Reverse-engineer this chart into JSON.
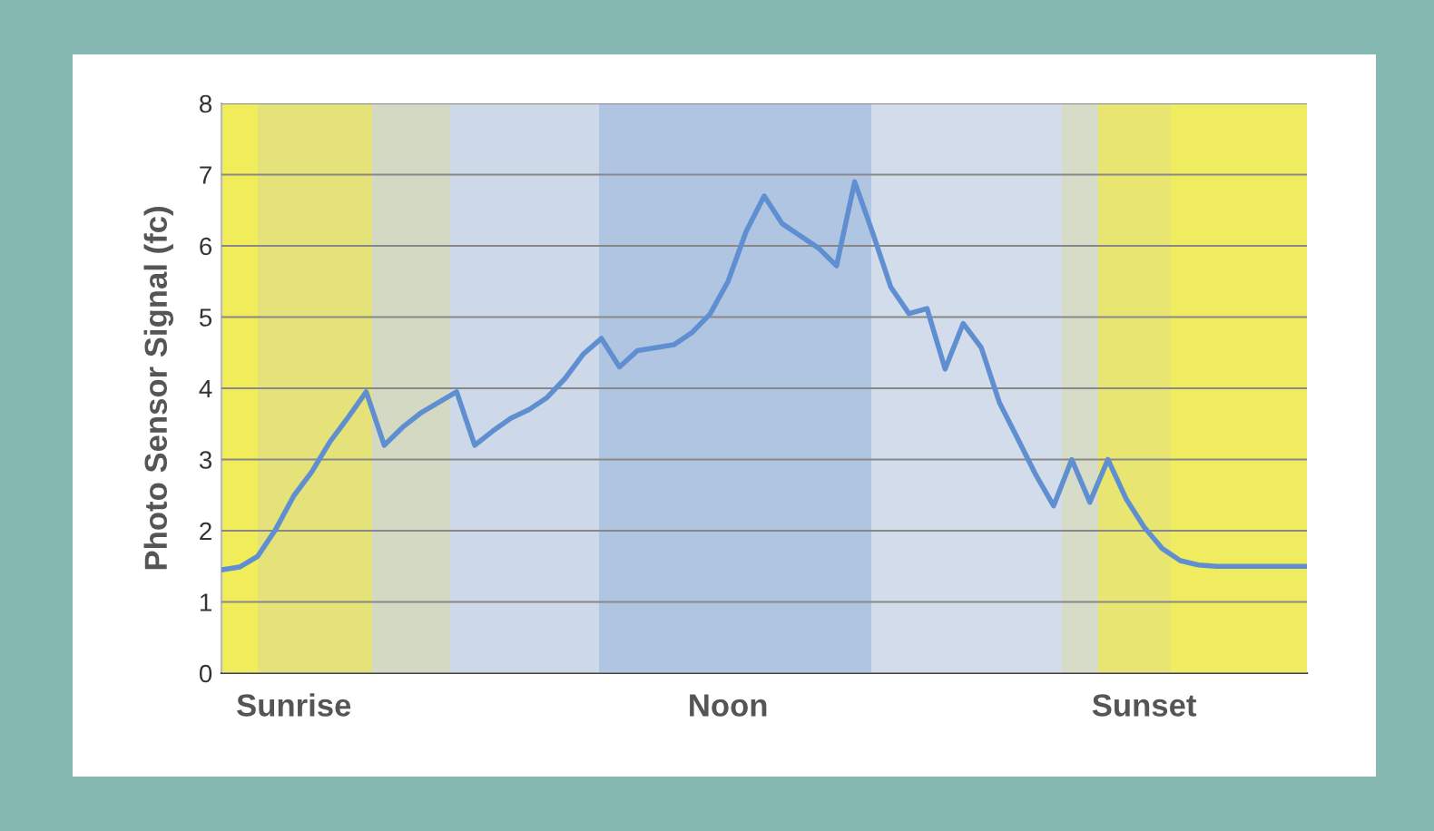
{
  "chart_data": {
    "type": "line",
    "ylabel": "Photo Sensor Signal (fc)",
    "categories": [
      null,
      null,
      null,
      null,
      "Sunrise",
      null,
      null,
      null,
      null,
      null,
      null,
      null,
      null,
      null,
      null,
      null,
      null,
      null,
      null,
      null,
      null,
      null,
      null,
      null,
      null,
      null,
      null,
      null,
      "Noon",
      null,
      null,
      null,
      null,
      null,
      null,
      null,
      null,
      null,
      null,
      null,
      null,
      null,
      null,
      null,
      null,
      null,
      null,
      null,
      null,
      null,
      null,
      "Sunset",
      null,
      null,
      null,
      null,
      null,
      null,
      null,
      null,
      null
    ],
    "values": [
      1.45,
      1.49,
      1.64,
      2.02,
      2.49,
      2.83,
      3.25,
      3.59,
      3.95,
      3.2,
      3.45,
      3.65,
      3.8,
      3.95,
      3.2,
      3.4,
      3.58,
      3.7,
      3.87,
      4.14,
      4.48,
      4.7,
      4.3,
      4.53,
      4.57,
      4.61,
      4.78,
      5.04,
      5.5,
      6.2,
      6.7,
      6.31,
      6.14,
      5.97,
      5.72,
      6.9,
      6.18,
      5.42,
      5.05,
      5.12,
      4.27,
      4.91,
      4.57,
      3.8,
      3.3,
      2.79,
      2.35,
      3.0,
      2.4,
      3.0,
      2.45,
      2.05,
      1.75,
      1.58,
      1.52,
      1.5,
      1.5,
      1.5,
      1.5,
      1.5,
      1.5
    ],
    "color": "#5f8fd0",
    "ylim": [
      0,
      8
    ],
    "yticks": [
      0,
      1,
      2,
      3,
      4,
      5,
      6,
      7,
      8
    ],
    "grid": "y"
  }
}
